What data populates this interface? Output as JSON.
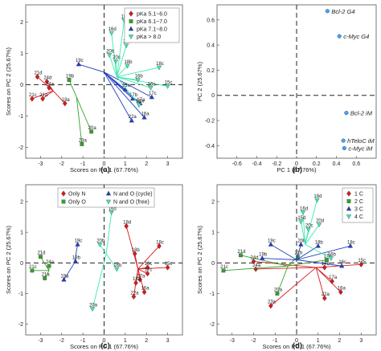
{
  "chart_data": [
    {
      "panel": "(a)",
      "type": "scatter",
      "xlabel": "Scores on PC 1 (67.76%)",
      "ylabel": "Scores on PC 2 (25.67%)",
      "xlim": [
        -3.7,
        3.7
      ],
      "ylim": [
        -2.35,
        2.55
      ],
      "xticks": [
        -3,
        -2,
        -1,
        0,
        1,
        2,
        3
      ],
      "yticks": [
        -2,
        -1,
        0,
        1,
        2
      ],
      "legend_position": "top-right",
      "series": [
        {
          "name": "pKa 5.1~6.0",
          "color": "#d7191c",
          "marker": "diamond",
          "groups": [
            {
              "center": [
                -2.4,
                -0.2
              ],
              "points": [
                {
                  "label": "21d",
                  "x": -3.15,
                  "y": 0.25
                },
                {
                  "label": "24d",
                  "x": -2.7,
                  "y": 0.1
                },
                {
                  "label": "24a",
                  "x": -2.6,
                  "y": -0.1
                },
                {
                  "label": "21a",
                  "x": -2.9,
                  "y": -0.45
                },
                {
                  "label": "21c",
                  "x": -3.4,
                  "y": -0.45
                },
                {
                  "label": "19a",
                  "x": -1.85,
                  "y": -0.6
                }
              ]
            }
          ]
        },
        {
          "name": "pKa 6.1~7.0",
          "color": "#33a02c",
          "marker": "square",
          "groups": [
            {
              "center": [
                -1.3,
                -0.4
              ],
              "points": [
                {
                  "label": "19b",
                  "x": -1.65,
                  "y": 0.15
                },
                {
                  "label": "20a",
                  "x": -0.6,
                  "y": -1.5
                },
                {
                  "label": "23a",
                  "x": -1.05,
                  "y": -1.9
                }
              ]
            }
          ]
        },
        {
          "name": "pKa 7.1~8.0",
          "color": "#1f3fbf",
          "marker": "triangle",
          "groups": [
            {
              "center": [
                0.0,
                0.4
              ],
              "points": [
                {
                  "label": "19c",
                  "x": -1.2,
                  "y": 0.65
                },
                {
                  "label": "15a",
                  "x": 1.0,
                  "y": -0.15
                },
                {
                  "label": "17b",
                  "x": 1.35,
                  "y": -0.45
                },
                {
                  "label": "16a",
                  "x": 1.9,
                  "y": -1.05
                },
                {
                  "label": "22a",
                  "x": 1.3,
                  "y": -1.15
                },
                {
                  "label": "17a",
                  "x": 1.7,
                  "y": -0.6
                },
                {
                  "label": "17c",
                  "x": 2.25,
                  "y": -0.4
                }
              ]
            }
          ]
        },
        {
          "name": "pKa > 8.0",
          "color": "#3de8b0",
          "marker": "triangle-down",
          "groups": [
            {
              "center": [
                0.6,
                0.25
              ],
              "points": [
                {
                  "label": "16d",
                  "x": 0.35,
                  "y": 1.65
                },
                {
                  "label": "18d",
                  "x": 0.95,
                  "y": 2.05
                },
                {
                  "label": "20b",
                  "x": 0.25,
                  "y": 0.95
                },
                {
                  "label": "20c",
                  "x": 0.55,
                  "y": 0.75
                },
                {
                  "label": "20d",
                  "x": 1.05,
                  "y": 1.25
                },
                {
                  "label": "18b",
                  "x": 1.1,
                  "y": 0.6
                },
                {
                  "label": "18c",
                  "x": 2.6,
                  "y": 0.55
                },
                {
                  "label": "16b",
                  "x": 1.6,
                  "y": 0.15
                },
                {
                  "label": "16c",
                  "x": 2.2,
                  "y": -0.1
                },
                {
                  "label": "15c",
                  "x": 3.0,
                  "y": -0.05
                },
                {
                  "label": "18a",
                  "x": 1.65,
                  "y": -0.65
                }
              ]
            }
          ]
        }
      ]
    },
    {
      "panel": "(b)",
      "type": "scatter",
      "xlabel": "PC 1 (67.76%)",
      "ylabel": "PC 2 (25.67%)",
      "xlim": [
        -0.8,
        0.8
      ],
      "ylim": [
        -0.5,
        0.72
      ],
      "xticks": [
        -0.6,
        -0.4,
        -0.2,
        0,
        0.2,
        0.4,
        0.6
      ],
      "yticks": [
        -0.4,
        -0.2,
        0,
        0.2,
        0.4,
        0.6
      ],
      "series": [
        {
          "color": "#4aa3f0",
          "marker": "circle",
          "points": [
            {
              "label": "Bcl-2 G4",
              "x": 0.31,
              "y": 0.67
            },
            {
              "label": "c-Myc G4",
              "x": 0.43,
              "y": 0.47
            },
            {
              "label": "Bcl-2 iM",
              "x": 0.5,
              "y": -0.14
            },
            {
              "label": "hTeloC iM",
              "x": 0.47,
              "y": -0.36
            },
            {
              "label": "c-Myc iM",
              "x": 0.48,
              "y": -0.42
            }
          ]
        }
      ]
    },
    {
      "panel": "(c)",
      "type": "scatter",
      "xlabel": "Scores on PC 1 (67.76%)",
      "ylabel": "Scores on PC 2 (25.67%)",
      "xlim": [
        -3.7,
        3.7
      ],
      "ylim": [
        -2.35,
        2.55
      ],
      "xticks": [
        -3,
        -2,
        -1,
        0,
        1,
        2,
        3
      ],
      "yticks": [
        -2,
        -1,
        0,
        1,
        2
      ],
      "legend_position": "top",
      "series": [
        {
          "name": "Only N",
          "color": "#d7191c",
          "marker": "diamond",
          "groups": [
            {
              "center": [
                1.6,
                -0.2
              ],
              "points": [
                {
                  "label": "18d",
                  "x": 1.05,
                  "y": 1.2
                },
                {
                  "label": "18c",
                  "x": 2.6,
                  "y": 0.55
                },
                {
                  "label": "18b",
                  "x": 1.45,
                  "y": 0.3
                },
                {
                  "label": "16c",
                  "x": 2.05,
                  "y": -0.15
                },
                {
                  "label": "15c",
                  "x": 3.0,
                  "y": -0.15
                },
                {
                  "label": "17c",
                  "x": 2.05,
                  "y": -0.35
                },
                {
                  "label": "17a",
                  "x": 1.7,
                  "y": -0.55
                },
                {
                  "label": "16a",
                  "x": 1.9,
                  "y": -0.95
                },
                {
                  "label": "22a",
                  "x": 1.4,
                  "y": -1.1
                },
                {
                  "label": "18a",
                  "x": 1.5,
                  "y": -0.65
                }
              ]
            }
          ]
        },
        {
          "name": "Only O",
          "color": "#33a02c",
          "marker": "square",
          "groups": [
            {
              "center": [
                -2.6,
                -0.25
              ],
              "points": [
                {
                  "label": "21d",
                  "x": -3.0,
                  "y": 0.2
                },
                {
                  "label": "24a",
                  "x": -2.6,
                  "y": -0.1
                },
                {
                  "label": "21c",
                  "x": -3.4,
                  "y": -0.25
                },
                {
                  "label": "21a",
                  "x": -2.8,
                  "y": -0.5
                }
              ]
            }
          ]
        },
        {
          "name": "N and O (cycle)",
          "color": "#1f3fbf",
          "marker": "triangle",
          "groups": [
            {
              "center": [
                -1.4,
                0.0
              ],
              "points": [
                {
                  "label": "19c",
                  "x": -1.25,
                  "y": 0.6
                },
                {
                  "label": "19b",
                  "x": -1.35,
                  "y": 0.05
                },
                {
                  "label": "19a",
                  "x": -1.9,
                  "y": -0.55
                }
              ]
            }
          ]
        },
        {
          "name": "N and O (free)",
          "color": "#3de8b0",
          "marker": "triangle-down",
          "groups": [
            {
              "center": [
                0.1,
                0.3
              ],
              "points": [
                {
                  "label": "20b",
                  "x": -0.2,
                  "y": 0.6
                },
                {
                  "label": "16d",
                  "x": 0.35,
                  "y": 1.65
                },
                {
                  "label": "16b",
                  "x": 0.6,
                  "y": -0.2
                },
                {
                  "label": "20a",
                  "x": -0.55,
                  "y": -1.5
                }
              ]
            }
          ]
        }
      ]
    },
    {
      "panel": "(d)",
      "type": "scatter",
      "xlabel": "Scores on PC 1 (67.76%)",
      "ylabel": "Scores on PC 2 (25.67%)",
      "xlim": [
        -3.7,
        3.7
      ],
      "ylim": [
        -2.35,
        2.55
      ],
      "xticks": [
        -3,
        -2,
        -1,
        0,
        1,
        2,
        3
      ],
      "yticks": [
        -2,
        -1,
        0,
        1,
        2
      ],
      "legend_position": "top-right",
      "series": [
        {
          "name": "1 C",
          "color": "#d7191c",
          "marker": "diamond",
          "groups": [
            {
              "center": [
                0.9,
                -0.15
              ],
              "points": [
                {
                  "label": "24d",
                  "x": -2.0,
                  "y": 0.05
                },
                {
                  "label": "24a",
                  "x": -1.9,
                  "y": -0.2
                },
                {
                  "label": "23a",
                  "x": -1.2,
                  "y": -1.4
                },
                {
                  "label": "22a",
                  "x": 1.3,
                  "y": -1.15
                },
                {
                  "label": "16a",
                  "x": 2.05,
                  "y": -0.95
                },
                {
                  "label": "17a",
                  "x": 1.65,
                  "y": -0.6
                },
                {
                  "label": "15c",
                  "x": 3.0,
                  "y": -0.05
                },
                {
                  "label": "17b",
                  "x": 1.3,
                  "y": -0.15
                }
              ]
            }
          ]
        },
        {
          "name": "2 C",
          "color": "#33a02c",
          "marker": "square",
          "groups": [
            {
              "center": [
                -0.4,
                -0.1
              ],
              "points": [
                {
                  "label": "21d",
                  "x": -2.6,
                  "y": 0.25
                },
                {
                  "label": "21c",
                  "x": -3.4,
                  "y": -0.25
                },
                {
                  "label": "20a",
                  "x": -0.9,
                  "y": -1.0
                },
                {
                  "label": "22b",
                  "x": 0.05,
                  "y": 0.2
                },
                {
                  "label": "17d",
                  "x": 1.4,
                  "y": 0.1
                }
              ]
            }
          ]
        },
        {
          "name": "3 C",
          "color": "#1f3fbf",
          "marker": "triangle",
          "groups": [
            {
              "center": [
                0.0,
                0.1
              ],
              "points": [
                {
                  "label": "19c",
                  "x": -1.2,
                  "y": 0.6
                },
                {
                  "label": "19b",
                  "x": -1.6,
                  "y": 0.15
                },
                {
                  "label": "20b",
                  "x": 0.2,
                  "y": 0.6
                },
                {
                  "label": "18b",
                  "x": 1.0,
                  "y": 0.55
                },
                {
                  "label": "16c",
                  "x": 2.1,
                  "y": -0.1
                },
                {
                  "label": "18c",
                  "x": 2.5,
                  "y": 0.55
                }
              ]
            }
          ]
        },
        {
          "name": "4 C",
          "color": "#3de8b0",
          "marker": "triangle-down",
          "groups": [
            {
              "center": [
                0.4,
                0.6
              ],
              "points": [
                {
                  "label": "16d",
                  "x": 0.3,
                  "y": 1.65
                },
                {
                  "label": "18d",
                  "x": 0.95,
                  "y": 2.05
                },
                {
                  "label": "15d",
                  "x": 0.2,
                  "y": 1.35
                },
                {
                  "label": "20c",
                  "x": 0.55,
                  "y": 1.1
                },
                {
                  "label": "20d",
                  "x": 1.05,
                  "y": 1.25
                },
                {
                  "label": "16b",
                  "x": 1.6,
                  "y": 0.15
                }
              ]
            }
          ]
        }
      ]
    }
  ]
}
